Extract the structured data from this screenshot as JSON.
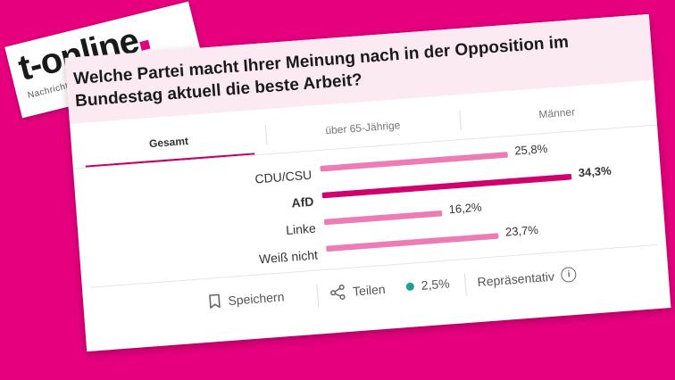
{
  "logo": {
    "word": "t-online",
    "tagline": "Nachrichten für Deutschland"
  },
  "title": "Welche Partei macht Ihrer Meinung nach in der Opposition im Bundestag aktuell die beste Arbeit?",
  "tabs": [
    {
      "label": "Gesamt",
      "active": true
    },
    {
      "label": "über 65-Jährige",
      "active": false
    },
    {
      "label": "Männer",
      "active": false
    }
  ],
  "chart_data": {
    "type": "bar",
    "orientation": "horizontal",
    "categories": [
      "CDU/CSU",
      "AfD",
      "Linke",
      "Weiß nicht"
    ],
    "values": [
      25.8,
      34.3,
      16.2,
      23.7
    ],
    "value_labels": [
      "25,8%",
      "34,3%",
      "16,2%",
      "23,7%"
    ],
    "highlight_index": 1,
    "xlim": [
      0,
      34.3
    ],
    "title": "",
    "xlabel": "",
    "ylabel": "",
    "grid": false,
    "colors": {
      "bar": "#ec7bb6",
      "highlight": "#d0006f"
    }
  },
  "footer": {
    "save_label": "Speichern",
    "share_label": "Teilen",
    "margin_label": "2,5%",
    "representative_label": "Repräsentativ",
    "info_glyph": "i",
    "dot_color": "#1aa391"
  }
}
